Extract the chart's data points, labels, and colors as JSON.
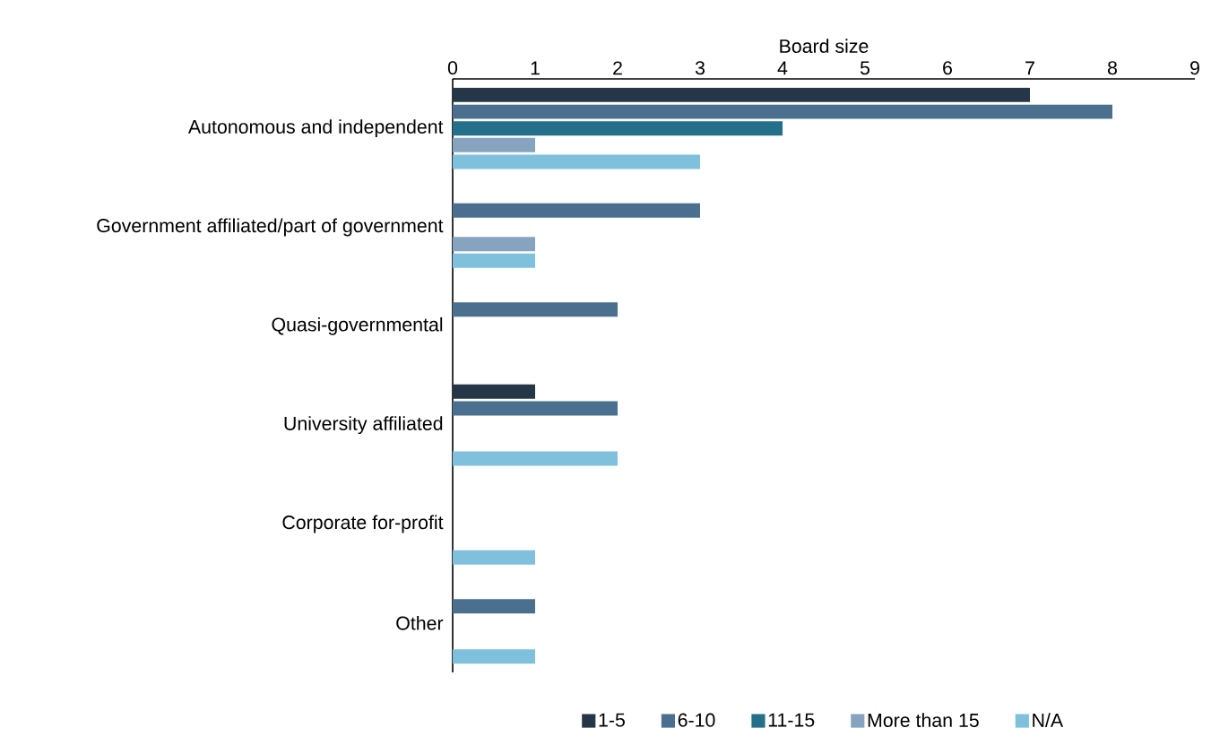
{
  "chart_data": {
    "type": "bar",
    "orientation": "horizontal",
    "xlabel": "Board size",
    "categories": [
      "Autonomous and independent",
      "Government affiliated/part of government",
      "Quasi-governmental",
      "University affiliated",
      "Corporate for-profit",
      "Other"
    ],
    "series": [
      {
        "name": "1-5",
        "color": "#253746",
        "values": [
          7,
          0,
          0,
          1,
          0,
          0
        ]
      },
      {
        "name": "6-10",
        "color": "#4a6f8f",
        "values": [
          8,
          3,
          2,
          2,
          0,
          1
        ]
      },
      {
        "name": "11-15",
        "color": "#24708a",
        "values": [
          4,
          0,
          0,
          0,
          0,
          0
        ]
      },
      {
        "name": "More than 15",
        "color": "#86a4c0",
        "values": [
          1,
          1,
          0,
          0,
          0,
          0
        ]
      },
      {
        "name": "N/A",
        "color": "#7fc0dc",
        "values": [
          3,
          1,
          0,
          2,
          1,
          1
        ]
      }
    ],
    "xlim": [
      0,
      9
    ],
    "xticks": [
      0,
      1,
      2,
      3,
      4,
      5,
      6,
      7,
      8,
      9
    ],
    "grid": false,
    "legend": "bottom"
  }
}
